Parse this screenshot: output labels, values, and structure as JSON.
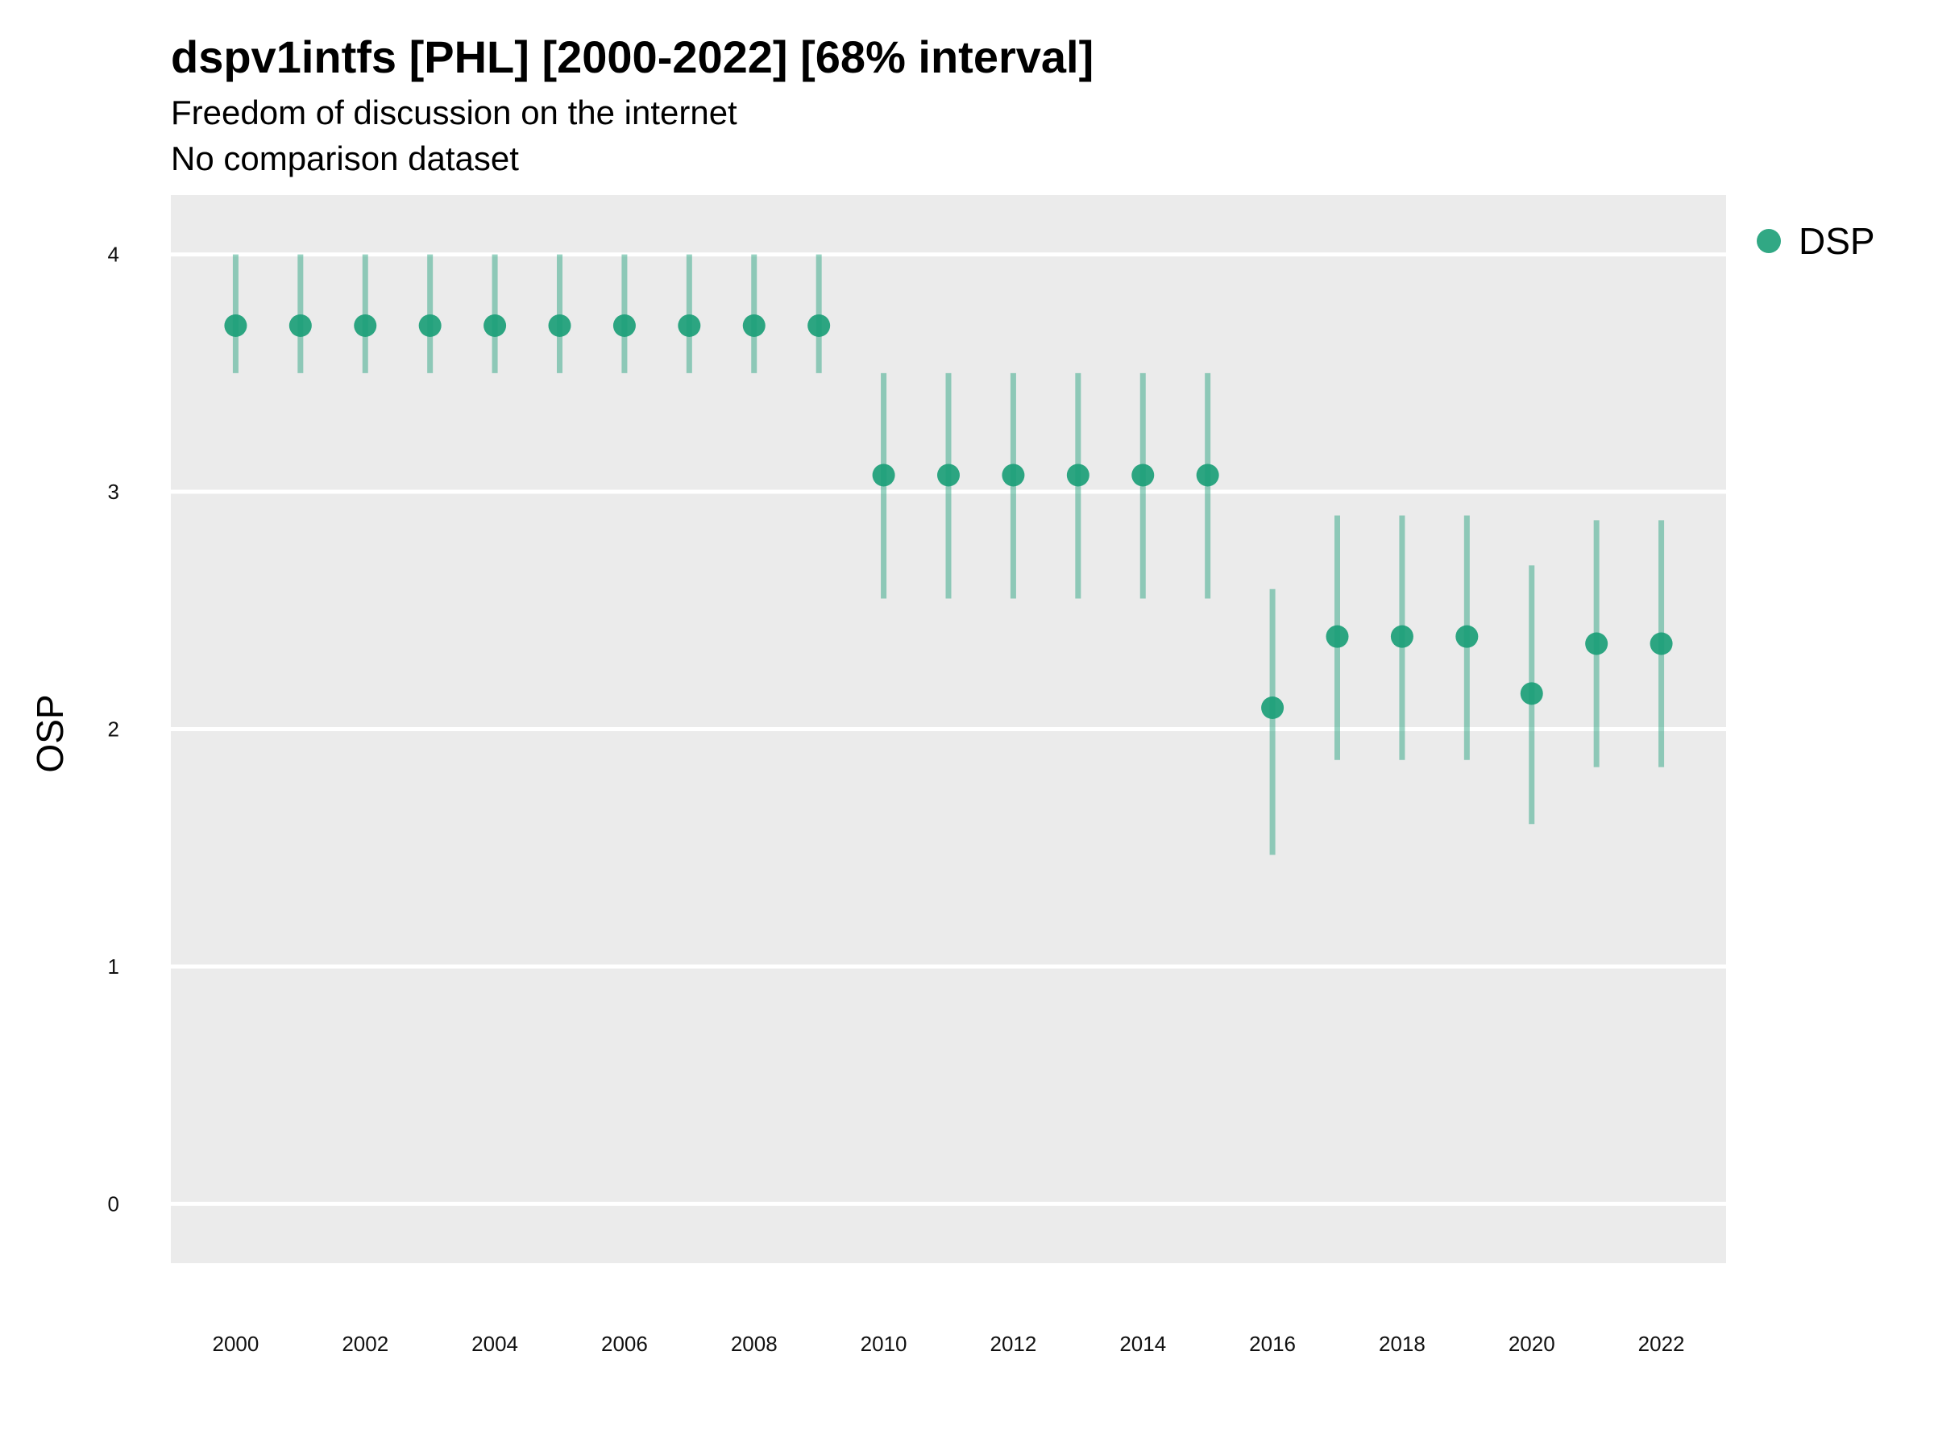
{
  "chart_data": {
    "type": "scatter",
    "title": "dspv1intfs [PHL] [2000-2022] [68% interval]",
    "subtitle": "Freedom of discussion on the internet",
    "caption": "No comparison dataset",
    "ylabel": "OSP",
    "xlabel": "",
    "ylim": [
      -0.25,
      4.25
    ],
    "xlim": [
      1999.0,
      2023.0
    ],
    "yticks": [
      0,
      1,
      2,
      3,
      4
    ],
    "xticks": [
      2000,
      2002,
      2004,
      2006,
      2008,
      2010,
      2012,
      2014,
      2016,
      2018,
      2020,
      2022
    ],
    "grid": true,
    "legend_position": "top-right",
    "series": [
      {
        "name": "DSP",
        "color": "#1b9e77",
        "x": [
          2000,
          2001,
          2002,
          2003,
          2004,
          2005,
          2006,
          2007,
          2008,
          2009,
          2010,
          2011,
          2012,
          2013,
          2014,
          2015,
          2016,
          2017,
          2018,
          2019,
          2020,
          2021,
          2022
        ],
        "y": [
          3.7,
          3.7,
          3.7,
          3.7,
          3.7,
          3.7,
          3.7,
          3.7,
          3.7,
          3.7,
          3.07,
          3.07,
          3.07,
          3.07,
          3.07,
          3.07,
          2.09,
          2.39,
          2.39,
          2.39,
          2.15,
          2.36,
          2.36
        ],
        "lower": [
          3.5,
          3.5,
          3.5,
          3.5,
          3.5,
          3.5,
          3.5,
          3.5,
          3.5,
          3.5,
          2.55,
          2.55,
          2.55,
          2.55,
          2.55,
          2.55,
          1.47,
          1.87,
          1.87,
          1.87,
          1.6,
          1.84,
          1.84
        ],
        "upper": [
          4.0,
          4.0,
          4.0,
          4.0,
          4.0,
          4.0,
          4.0,
          4.0,
          4.0,
          4.0,
          3.5,
          3.5,
          3.5,
          3.5,
          3.5,
          3.5,
          2.59,
          2.9,
          2.9,
          2.9,
          2.69,
          2.88,
          2.88
        ]
      }
    ]
  }
}
